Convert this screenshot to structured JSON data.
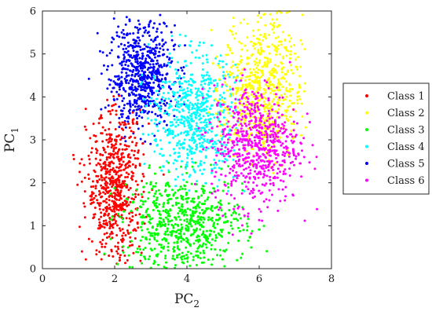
{
  "chart_data": {
    "type": "scatter",
    "xlabel": {
      "main": "PC",
      "sub": "2"
    },
    "ylabel": {
      "main": "PC",
      "sub": "1"
    },
    "xlim": [
      0,
      8
    ],
    "ylim": [
      0,
      6
    ],
    "xticks": [
      "0",
      "2",
      "4",
      "6",
      "8"
    ],
    "yticks": [
      "0",
      "1",
      "2",
      "3",
      "4",
      "5",
      "6"
    ],
    "grid": false,
    "legend_position": "right",
    "series": [
      {
        "name": "Class 1",
        "color": "#ff0000",
        "cluster": {
          "mean": [
            2.0,
            1.9
          ],
          "sd": [
            0.38,
            0.85
          ],
          "x_range": [
            0.8,
            3.4
          ],
          "y_range": [
            0.0,
            4.1
          ]
        }
      },
      {
        "name": "Class 2",
        "color": "#ffff00",
        "cluster": {
          "mean": [
            6.1,
            4.2
          ],
          "sd": [
            0.55,
            0.85
          ],
          "x_range": [
            4.6,
            7.3
          ],
          "y_range": [
            2.2,
            6.0
          ]
        }
      },
      {
        "name": "Class 3",
        "color": "#00ff00",
        "cluster": {
          "mean": [
            3.9,
            1.05
          ],
          "sd": [
            0.85,
            0.55
          ],
          "x_range": [
            1.7,
            6.5
          ],
          "y_range": [
            0.0,
            2.6
          ]
        }
      },
      {
        "name": "Class 4",
        "color": "#00ffff",
        "cluster": {
          "mean": [
            4.2,
            3.5
          ],
          "sd": [
            0.6,
            0.75
          ],
          "x_range": [
            2.7,
            5.6
          ],
          "y_range": [
            1.8,
            5.5
          ]
        }
      },
      {
        "name": "Class 5",
        "color": "#0000ff",
        "cluster": {
          "mean": [
            2.75,
            4.5
          ],
          "sd": [
            0.45,
            0.6
          ],
          "x_range": [
            1.1,
            4.0
          ],
          "y_range": [
            2.8,
            5.95
          ]
        }
      },
      {
        "name": "Class 6",
        "color": "#ff00ff",
        "cluster": {
          "mean": [
            5.9,
            2.9
          ],
          "sd": [
            0.6,
            0.7
          ],
          "x_range": [
            4.0,
            7.6
          ],
          "y_range": [
            0.3,
            5.0
          ]
        }
      }
    ]
  }
}
